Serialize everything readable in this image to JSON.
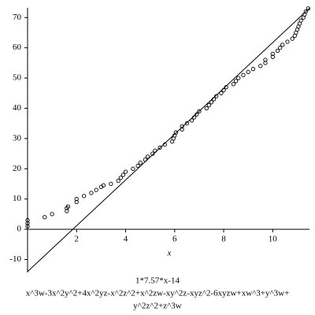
{
  "chart_data": {
    "type": "scatter",
    "x_label": "x",
    "caption": [
      "1*7.57*x-14",
      "x^3w-3x^2y^2+4x^2yz-x^2z^2+x^2zw-xy^2z-xyz^2-6xyzw+xw^3+y^3w+",
      "y^2z^2+z^3w"
    ],
    "xlim": [
      0,
      11.5
    ],
    "ylim": [
      -14.3,
      73.2
    ],
    "xticks": [
      2,
      4,
      6,
      8,
      10
    ],
    "yticks": [
      -10,
      0,
      10,
      20,
      30,
      40,
      50,
      60,
      70
    ],
    "color": "#000000",
    "x": [
      0,
      0,
      0,
      0.7,
      1,
      1.6,
      1.6,
      1.65,
      2,
      2,
      2.3,
      2.6,
      2.8,
      3,
      3.1,
      3.4,
      3.7,
      3.8,
      3.9,
      4,
      4.3,
      4.5,
      4.6,
      4.8,
      4.9,
      5.1,
      5.2,
      5.4,
      5.6,
      5.9,
      5.95,
      6,
      6.05,
      6.3,
      6.3,
      6.5,
      6.7,
      6.8,
      6.9,
      7,
      7.3,
      7.4,
      7.5,
      7.6,
      7.7,
      7.9,
      8,
      8.1,
      8.4,
      8.5,
      8.6,
      8.8,
      9,
      9.2,
      9.5,
      9.7,
      9.7,
      10,
      10,
      10.2,
      10.3,
      10.4,
      10.6,
      10.8,
      10.9,
      10.95,
      11,
      11.05,
      11.1,
      11.15,
      11.25,
      11.3,
      11.35,
      11.45
    ],
    "values": [
      1,
      2,
      3,
      4,
      5,
      6,
      7,
      7.5,
      9,
      10,
      11,
      12,
      13,
      14,
      14.5,
      15,
      16,
      17,
      18,
      19,
      20,
      21,
      22,
      23,
      24,
      25,
      26,
      27,
      28,
      29,
      30,
      31,
      32,
      33,
      34,
      35,
      36,
      37,
      38,
      39,
      40,
      41,
      42,
      43,
      44,
      45,
      46,
      47,
      48,
      49,
      50,
      51,
      52,
      53,
      54,
      55,
      56,
      57,
      58,
      59,
      60,
      61,
      62,
      63,
      64,
      65,
      66,
      67,
      68,
      69,
      70,
      71,
      72,
      73
    ],
    "line": {
      "x": [
        0,
        11.5
      ],
      "values": [
        -14,
        73.1
      ]
    }
  }
}
